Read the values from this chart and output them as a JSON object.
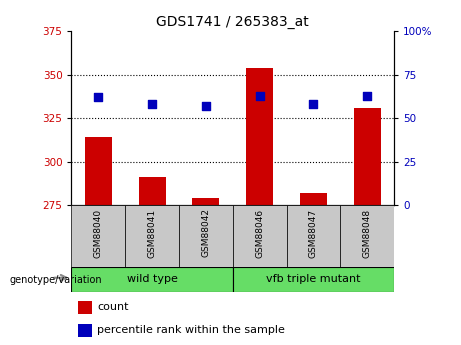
{
  "title": "GDS1741 / 265383_at",
  "categories": [
    "GSM88040",
    "GSM88041",
    "GSM88042",
    "GSM88046",
    "GSM88047",
    "GSM88048"
  ],
  "count_values": [
    314,
    291,
    279,
    354,
    282,
    331
  ],
  "percentile_values": [
    62,
    58,
    57,
    63,
    58,
    63
  ],
  "ylim_left": [
    275,
    375
  ],
  "ylim_right": [
    0,
    100
  ],
  "yticks_left": [
    275,
    300,
    325,
    350,
    375
  ],
  "yticks_right": [
    0,
    25,
    50,
    75,
    100
  ],
  "bar_color": "#CC0000",
  "dot_color": "#0000BB",
  "tick_label_color_left": "#CC0000",
  "tick_label_color_right": "#0000BB",
  "bar_width": 0.5,
  "dot_size": 30,
  "group_label": "genotype/variation",
  "legend_count_label": "count",
  "legend_percentile_label": "percentile rank within the sample",
  "wt_color": "#66DD66",
  "mutant_color": "#66DD66",
  "label_box_color": "#C8C8C8",
  "grid_yticks": [
    300,
    325,
    350
  ]
}
